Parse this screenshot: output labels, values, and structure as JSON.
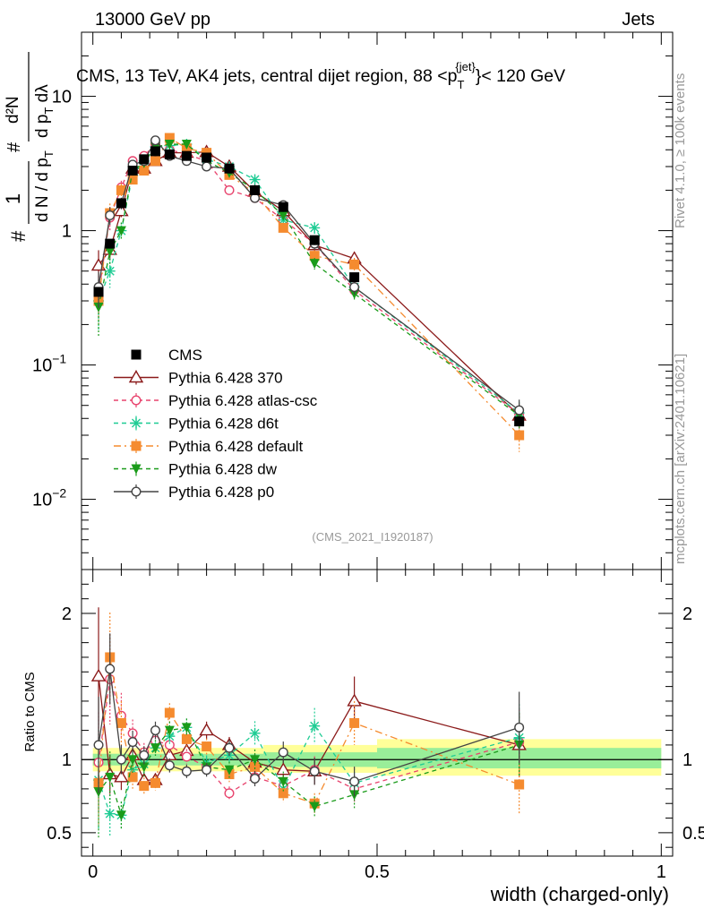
{
  "header": {
    "left": "13000 GeV pp",
    "right": "Jets"
  },
  "side_text": {
    "rivet": "Rivet 4.1.0, ≥ 100k events",
    "mcplots": "mcplots.cern.ch [arXiv:2401.10621]"
  },
  "chart_data": {
    "type": "line",
    "title": "CMS, 13 TeV, AK4 jets, central dijet region, 88 <p_T^{jet}< 120 GeV",
    "title_parts": {
      "main": "CMS, 13 TeV, AK4 jets, central dijet region, 88 <p",
      "sub": "T",
      "sup": "{jet}",
      "tail": "}< 120 GeV"
    },
    "watermark": "(CMS_2021_I1920187)",
    "xlabel": "width (charged-only)",
    "ylabel": "1/dN/dp_T  d²N/dp_T dλ",
    "ylabel_parts": {
      "hash": "#",
      "one": "1",
      "den": "d N / d p",
      "sub": "T",
      "hash2": "#",
      "num": "d²N",
      "den2a": "d p",
      "den2sub": "T",
      "den2b": " dλ"
    },
    "xlim": [
      -0.02,
      1.02
    ],
    "xticks": [
      0,
      0.5,
      1
    ],
    "xtick_labels": [
      "0",
      "0.5",
      "1"
    ],
    "main_panel": {
      "yscale": "log",
      "ylim": [
        0.003,
        30
      ],
      "ytick_labels": [
        {
          "value": 0.01,
          "base": "10",
          "exp": "−2"
        },
        {
          "value": 0.1,
          "base": "10",
          "exp": "−1"
        },
        {
          "value": 1,
          "base": "1",
          "exp": ""
        },
        {
          "value": 10,
          "base": "10",
          "exp": ""
        }
      ]
    },
    "ratio_panel": {
      "ylabel": "Ratio to CMS",
      "ylim": [
        0.34,
        2.3
      ],
      "ytick_labels": [
        "0.5",
        "1",
        "2"
      ],
      "yticks": [
        0.5,
        1,
        2
      ]
    },
    "x": [
      0.01,
      0.03,
      0.05,
      0.07,
      0.09,
      0.11,
      0.135,
      0.165,
      0.2,
      0.24,
      0.285,
      0.335,
      0.39,
      0.46,
      0.75
    ],
    "cms": {
      "name": "CMS",
      "values": [
        0.35,
        0.8,
        1.6,
        2.8,
        3.4,
        3.9,
        3.7,
        3.6,
        3.5,
        2.9,
        2.0,
        1.5,
        0.85,
        0.45,
        0.038
      ],
      "band_outer": [
        {
          "x0": 0.0,
          "x1": 0.3,
          "lo": 0.92,
          "hi": 1.08
        },
        {
          "x0": 0.3,
          "x1": 0.5,
          "lo": 0.91,
          "hi": 1.1
        },
        {
          "x0": 0.5,
          "x1": 1.0,
          "lo": 0.89,
          "hi": 1.14
        }
      ],
      "band_inner": [
        {
          "x0": 0.0,
          "x1": 0.3,
          "lo": 0.96,
          "hi": 1.04
        },
        {
          "x0": 0.3,
          "x1": 0.5,
          "lo": 0.95,
          "hi": 1.05
        },
        {
          "x0": 0.5,
          "x1": 1.0,
          "lo": 0.94,
          "hi": 1.08
        }
      ]
    },
    "series": [
      {
        "name": "Pythia 6.428 370",
        "color": "#8b1a1a",
        "marker": "triangle-open",
        "dash": "solid",
        "values": [
          0.55,
          0.72,
          1.4,
          2.9,
          2.9,
          3.3,
          3.8,
          3.8,
          3.85,
          3.0,
          1.95,
          1.4,
          0.78,
          0.62,
          0.042
        ],
        "ratio": [
          1.57,
          0.9,
          0.88,
          1.03,
          0.86,
          0.86,
          1.03,
          1.06,
          1.2,
          1.1,
          0.98,
          0.93,
          0.92,
          1.4,
          1.1
        ],
        "rel_err": [
          0.3,
          0.15,
          0.1,
          0.08,
          0.06,
          0.05,
          0.05,
          0.05,
          0.05,
          0.05,
          0.06,
          0.07,
          0.1,
          0.12,
          0.2
        ]
      },
      {
        "name": "Pythia 6.428 atlas-csc",
        "color": "#e8436d",
        "marker": "circle-open",
        "dash": "dashed",
        "values": [
          0.34,
          1.25,
          2.1,
          3.3,
          3.6,
          4.4,
          4.0,
          3.7,
          3.3,
          2.0,
          1.75,
          1.2,
          0.8,
          0.36,
          0.043
        ],
        "ratio": [
          0.98,
          1.55,
          1.3,
          1.18,
          1.05,
          1.13,
          1.1,
          1.02,
          0.95,
          0.77,
          0.88,
          0.82,
          0.93,
          0.8,
          1.12
        ],
        "rel_err": [
          0.35,
          0.2,
          0.12,
          0.08,
          0.06,
          0.05,
          0.05,
          0.05,
          0.05,
          0.06,
          0.07,
          0.08,
          0.1,
          0.12,
          0.2
        ]
      },
      {
        "name": "Pythia 6.428 d6t",
        "color": "#1fcc94",
        "marker": "star",
        "dash": "dashed",
        "values": [
          0.3,
          0.5,
          1.0,
          2.6,
          3.3,
          4.2,
          4.3,
          4.4,
          3.4,
          3.0,
          2.4,
          1.2,
          1.05,
          0.38,
          0.044
        ],
        "ratio": [
          0.86,
          0.63,
          0.62,
          0.93,
          0.97,
          1.08,
          1.16,
          1.22,
          0.98,
          1.03,
          1.18,
          0.8,
          1.23,
          0.84,
          1.15
        ],
        "rel_err": [
          0.4,
          0.25,
          0.15,
          0.09,
          0.07,
          0.05,
          0.05,
          0.05,
          0.05,
          0.06,
          0.07,
          0.08,
          0.1,
          0.12,
          0.2
        ]
      },
      {
        "name": "Pythia 6.428 default",
        "color": "#f58b2f",
        "marker": "square",
        "dash": "dashdot",
        "values": [
          0.3,
          1.35,
          2.0,
          2.4,
          2.8,
          3.3,
          4.9,
          4.1,
          3.8,
          2.6,
          1.9,
          1.05,
          0.65,
          0.56,
          0.03
        ],
        "ratio": [
          0.84,
          1.7,
          1.25,
          0.88,
          0.82,
          0.84,
          1.32,
          1.14,
          1.09,
          0.9,
          0.95,
          0.77,
          0.7,
          1.25,
          0.83
        ],
        "rel_err": [
          0.35,
          0.18,
          0.12,
          0.09,
          0.07,
          0.06,
          0.05,
          0.05,
          0.05,
          0.06,
          0.07,
          0.08,
          0.1,
          0.12,
          0.25
        ]
      },
      {
        "name": "Pythia 6.428 dw",
        "color": "#1a9b1a",
        "marker": "triangle-down",
        "dash": "dashed",
        "values": [
          0.27,
          0.7,
          1.0,
          2.8,
          3.2,
          4.2,
          4.4,
          4.4,
          3.3,
          2.7,
          2.0,
          1.3,
          0.57,
          0.34,
          0.042
        ],
        "ratio": [
          0.78,
          0.88,
          0.62,
          1.0,
          0.95,
          1.08,
          1.2,
          1.22,
          0.95,
          0.93,
          1.0,
          0.85,
          0.68,
          0.76,
          1.1
        ],
        "rel_err": [
          0.4,
          0.2,
          0.15,
          0.09,
          0.07,
          0.05,
          0.05,
          0.05,
          0.05,
          0.06,
          0.07,
          0.08,
          0.1,
          0.12,
          0.2
        ]
      },
      {
        "name": "Pythia 6.428 p0",
        "color": "#444444",
        "marker": "circle-open",
        "dash": "solid",
        "values": [
          0.38,
          1.3,
          1.6,
          3.1,
          3.3,
          4.7,
          3.6,
          3.3,
          3.0,
          2.9,
          1.75,
          1.55,
          0.8,
          0.38,
          0.046
        ],
        "ratio": [
          1.1,
          1.62,
          1.0,
          1.12,
          1.03,
          1.2,
          0.96,
          0.92,
          0.93,
          1.08,
          0.87,
          1.05,
          0.92,
          0.85,
          1.22
        ],
        "rel_err": [
          0.3,
          0.15,
          0.1,
          0.07,
          0.06,
          0.05,
          0.05,
          0.05,
          0.05,
          0.05,
          0.06,
          0.07,
          0.1,
          0.12,
          0.2
        ]
      }
    ]
  }
}
